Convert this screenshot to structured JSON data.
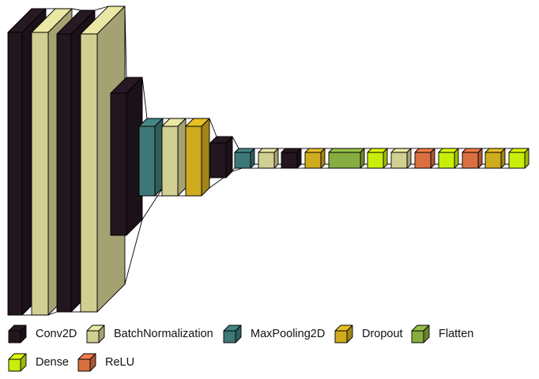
{
  "layer_types": {
    "conv2d": {
      "label": "Conv2D",
      "color": "#23161F"
    },
    "bn": {
      "label": "BatchNormalization",
      "color": "#D2CF93"
    },
    "pool": {
      "label": "MaxPooling2D",
      "color": "#3E7777"
    },
    "dropout": {
      "label": "Dropout",
      "color": "#CFAB1E"
    },
    "flatten": {
      "label": "Flatten",
      "color": "#86AD3F"
    },
    "dense": {
      "label": "Dense",
      "color": "#C8EE0A"
    },
    "relu": {
      "label": "ReLU",
      "color": "#DA7042"
    }
  },
  "layers": [
    "conv2d",
    "bn",
    "conv2d",
    "bn",
    "conv2d",
    "pool",
    "bn",
    "dropout",
    "conv2d",
    "pool",
    "bn",
    "conv2d",
    "dropout",
    "flatten",
    "dense",
    "bn",
    "relu",
    "dense",
    "relu",
    "dropout",
    "dense"
  ],
  "legend": {
    "items": [
      {
        "type": "conv2d",
        "label": "Conv2D"
      },
      {
        "type": "bn",
        "label": "BatchNormalization"
      },
      {
        "type": "pool",
        "label": "MaxPooling2D"
      },
      {
        "type": "dropout",
        "label": "Dropout"
      },
      {
        "type": "flatten",
        "label": "Flatten"
      },
      {
        "type": "dense",
        "label": "Dense"
      },
      {
        "type": "relu",
        "label": "ReLU"
      }
    ]
  }
}
